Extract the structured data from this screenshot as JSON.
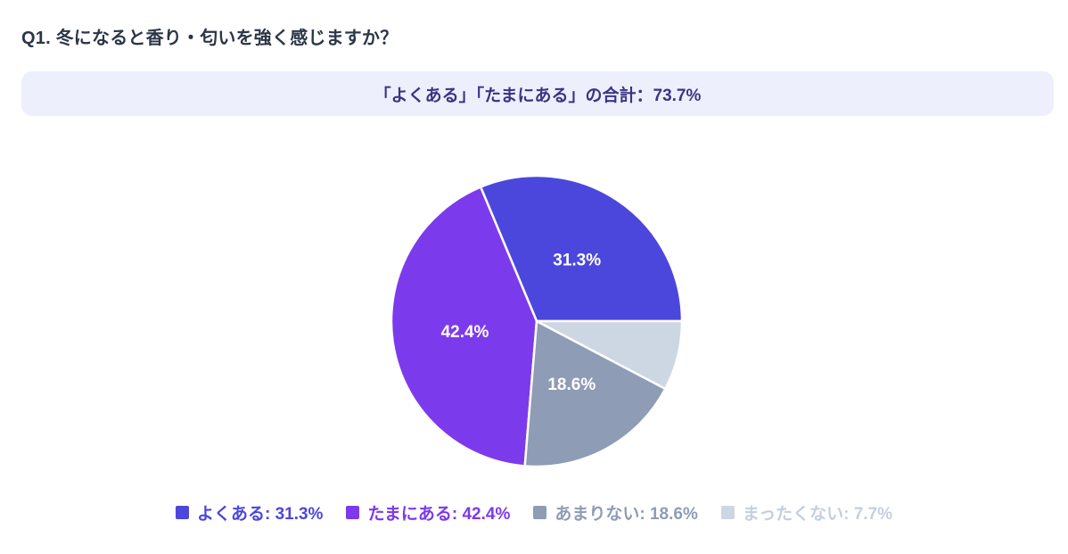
{
  "page": {
    "title": "Q1. 冬になると香り・匂いを強く感じますか？"
  },
  "summary_banner": {
    "text": "「よくある」「たまにある」の合計：73.7%",
    "background": "#edf0fc",
    "text_color": "#3b3486"
  },
  "chart_data": {
    "type": "pie",
    "question": "Q1. 冬になると香り・匂いを強く感じますか？",
    "categories": [
      "よくある",
      "たまにある",
      "あまりない",
      "まったくない"
    ],
    "values": [
      31.3,
      42.4,
      18.6,
      7.7
    ],
    "colors": [
      "#4b47dc",
      "#7c3aed",
      "#8e9cb5",
      "#cdd6e3"
    ],
    "slice_labels": [
      "31.3%",
      "42.4%",
      "18.6%",
      ""
    ],
    "slice_label_color": "#ffffff",
    "separator_color": "#ffffff",
    "legend_position": "bottom",
    "legend_entries": [
      "よくある: 31.3%",
      "たまにある: 42.4%",
      "あまりない: 18.6%",
      "まったくない: 7.7%"
    ],
    "legend_text_colors": [
      "#4b47dc",
      "#7c3aed",
      "#8e9cb5",
      "#c5cfdd"
    ],
    "geometry": {
      "start_angle_deg_clockwise_from_top": 90,
      "direction": "counterclockwise",
      "label_radius_ratio": 0.5
    }
  }
}
